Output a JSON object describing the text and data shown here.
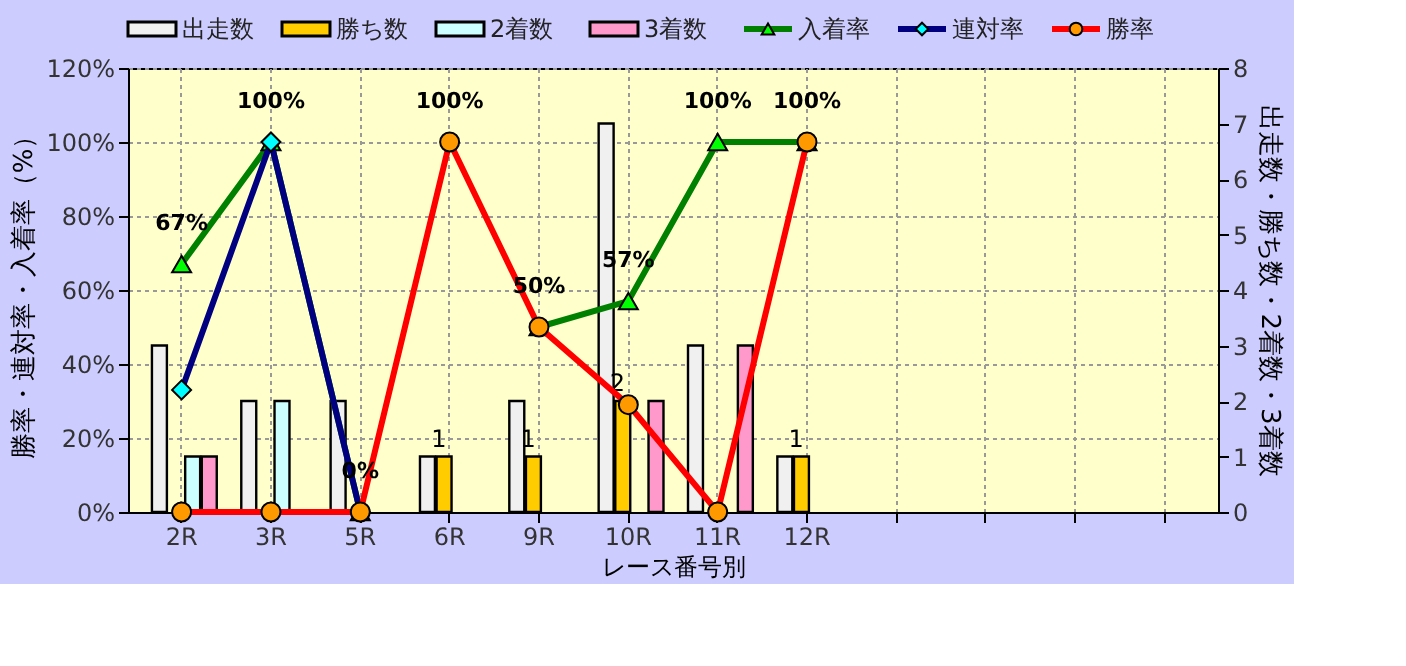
{
  "chart_data": {
    "type": "bar",
    "xlabel": "レース番号別",
    "ylabel": "勝率・連対率・入着率（%）",
    "y2label": "出走数・勝ち数・2着数・3着数",
    "categories": [
      "2R",
      "3R",
      "5R",
      "6R",
      "9R",
      "10R",
      "11R",
      "12R",
      null,
      null,
      null,
      null
    ],
    "series": [
      {
        "name": "出走数",
        "axis": "y2",
        "color": "#f0f0f0",
        "values": [
          3,
          2,
          2,
          1,
          2,
          7,
          3,
          1,
          null,
          null,
          null,
          null
        ]
      },
      {
        "name": "勝ち数",
        "axis": "y2",
        "color": "#ffcc00",
        "values": [
          0,
          0,
          0,
          1,
          1,
          2,
          0,
          1,
          null,
          null,
          null,
          null
        ],
        "value_labels": [
          null,
          null,
          null,
          "1",
          "1",
          "2",
          null,
          "1",
          null,
          null,
          null,
          null
        ]
      },
      {
        "name": "2着数",
        "axis": "y2",
        "color": "#ccffff",
        "values": [
          1,
          2,
          0,
          0,
          0,
          0,
          0,
          0,
          null,
          null,
          null,
          null
        ]
      },
      {
        "name": "3着数",
        "axis": "y2",
        "color": "#ff99cc",
        "values": [
          1,
          0,
          0,
          0,
          0,
          2,
          3,
          0,
          null,
          null,
          null,
          null
        ]
      },
      {
        "name": "入着率",
        "type": "line",
        "color": "#008000",
        "marker": "triangle",
        "colors": [
          "#00ff00",
          "#00ff00",
          "#00ff00",
          "#00ff00",
          "#00ff00",
          "#00ff00",
          "#00ff00",
          "#00ff00",
          null,
          null,
          null,
          null
        ],
        "values": [
          67,
          100,
          0,
          null,
          50,
          57,
          100,
          100,
          null,
          null,
          null,
          null
        ],
        "value_labels": [
          "67%",
          "100%",
          "0%",
          null,
          "50%",
          "57%",
          "100%",
          "100%",
          null,
          null,
          null,
          null
        ]
      },
      {
        "name": "連対率",
        "type": "line",
        "color": "#000080",
        "marker": "diamond",
        "colors": [
          "#00ffff",
          "#00ffff",
          "#00ffff",
          null,
          null,
          null,
          null,
          null,
          null,
          null,
          null,
          null
        ],
        "values": [
          33,
          100,
          0,
          null,
          null,
          null,
          null,
          null,
          null,
          null,
          null,
          null
        ]
      },
      {
        "name": "勝率",
        "type": "line",
        "color": "#ff0000",
        "marker": "circle",
        "colors": [
          "#ff9900",
          "#ff9900",
          "#ff9900",
          "#ff9900",
          "#ff9900",
          "#ff9900",
          "#ff9900",
          "#ff9900",
          null,
          null,
          null,
          null
        ],
        "values": [
          0,
          0,
          0,
          100,
          50,
          29,
          0,
          100,
          null,
          null,
          null,
          null
        ],
        "value_labels": [
          null,
          null,
          null,
          "100%",
          null,
          null,
          null,
          null,
          null,
          null,
          null,
          null
        ]
      }
    ],
    "ylim": [
      0,
      120
    ],
    "yticks": [
      {
        "value": 0,
        "label": "0%"
      },
      {
        "value": 20,
        "label": "20%"
      },
      {
        "value": 40,
        "label": "40%"
      },
      {
        "value": 60,
        "label": "60%"
      },
      {
        "value": 80,
        "label": "80%"
      },
      {
        "value": 100,
        "label": "100%"
      },
      {
        "value": 120,
        "label": "120%"
      }
    ],
    "y2lim": [
      0,
      8
    ],
    "y2ticks": [
      0,
      1,
      2,
      3,
      4,
      5,
      6,
      7,
      8
    ],
    "grid": true,
    "legend": "top"
  }
}
